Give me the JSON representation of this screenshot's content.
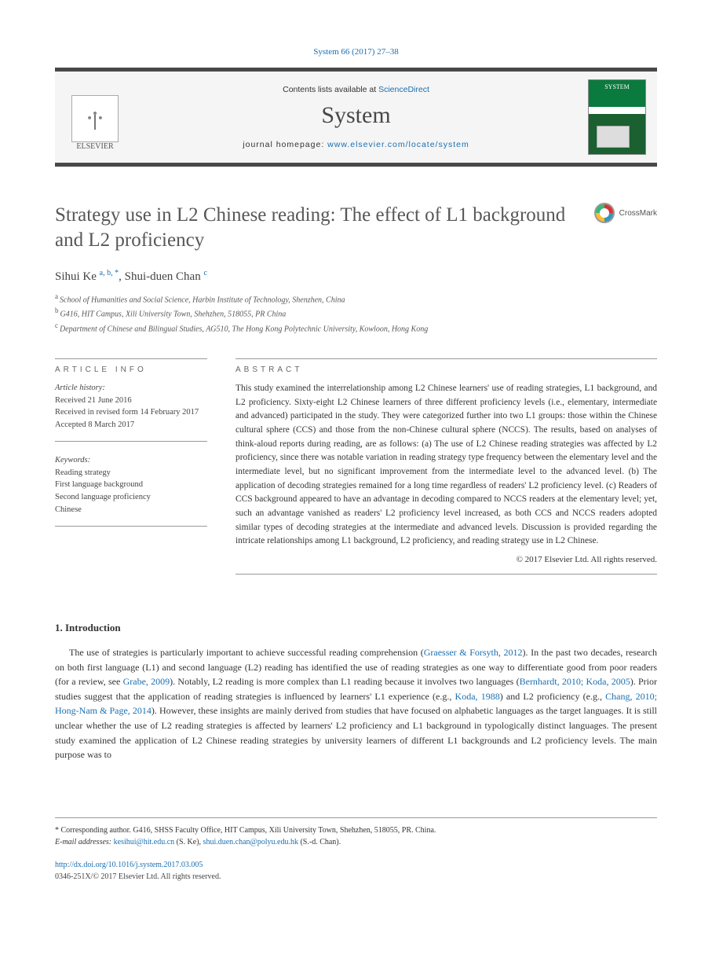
{
  "citation_header": "System 66 (2017) 27–38",
  "header": {
    "publisher_name": "ELSEVIER",
    "contents_prefix": "Contents lists available at ",
    "contents_linktext": "ScienceDirect",
    "journal_name": "System",
    "homepage_prefix": "journal homepage: ",
    "homepage_linktext": "www.elsevier.com/locate/system",
    "cover_title": "SYSTEM"
  },
  "crossmark_label": "CrossMark",
  "article": {
    "title": "Strategy use in L2 Chinese reading: The effect of L1 background and L2 proficiency",
    "authors_html_parts": {
      "a1_name": "Sihui Ke",
      "a1_aff": "a, b, *",
      "sep": ", ",
      "a2_name": "Shui-duen Chan",
      "a2_aff": "c"
    },
    "affiliations": [
      {
        "sup": "a",
        "text": "School of Humanities and Social Science, Harbin Institute of Technology, Shenzhen, China"
      },
      {
        "sup": "b",
        "text": "G416, HIT Campus, Xili University Town, Shehzhen, 518055, PR China"
      },
      {
        "sup": "c",
        "text": "Department of Chinese and Bilingual Studies, AG510, The Hong Kong Polytechnic University, Kowloon, Hong Kong"
      }
    ]
  },
  "labels": {
    "article_info": "ARTICLE INFO",
    "abstract": "ABSTRACT"
  },
  "history": {
    "heading": "Article history:",
    "received": "Received 21 June 2016",
    "revised": "Received in revised form 14 February 2017",
    "accepted": "Accepted 8 March 2017"
  },
  "keywords": {
    "heading": "Keywords:",
    "items": [
      "Reading strategy",
      "First language background",
      "Second language proficiency",
      "Chinese"
    ]
  },
  "abstract_text": "This study examined the interrelationship among L2 Chinese learners' use of reading strategies, L1 background, and L2 proficiency. Sixty-eight L2 Chinese learners of three different proficiency levels (i.e., elementary, intermediate and advanced) participated in the study. They were categorized further into two L1 groups: those within the Chinese cultural sphere (CCS) and those from the non-Chinese cultural sphere (NCCS). The results, based on analyses of think-aloud reports during reading, are as follows: (a) The use of L2 Chinese reading strategies was affected by L2 proficiency, since there was notable variation in reading strategy type frequency between the elementary level and the intermediate level, but no significant improvement from the intermediate level to the advanced level. (b) The application of decoding strategies remained for a long time regardless of readers' L2 proficiency level. (c) Readers of CCS background appeared to have an advantage in decoding compared to NCCS readers at the elementary level; yet, such an advantage vanished as readers' L2 proficiency level increased, as both CCS and NCCS readers adopted similar types of decoding strategies at the intermediate and advanced levels. Discussion is provided regarding the intricate relationships among L1 background, L2 proficiency, and reading strategy use in L2 Chinese.",
  "abstract_copyright": "© 2017 Elsevier Ltd. All rights reserved.",
  "intro": {
    "heading": "1. Introduction",
    "para_parts": {
      "t0": "The use of strategies is particularly important to achieve successful reading comprehension (",
      "c0": "Graesser & Forsyth, 2012",
      "t1": "). In the past two decades, research on both first language (L1) and second language (L2) reading has identified the use of reading strategies as one way to differentiate good from poor readers (for a review, see ",
      "c1": "Grabe, 2009",
      "t2": "). Notably, L2 reading is more complex than L1 reading because it involves two languages (",
      "c2": "Bernhardt, 2010; Koda, 2005",
      "t3": "). Prior studies suggest that the application of reading strategies is influenced by learners' L1 experience (e.g., ",
      "c3": "Koda, 1988",
      "t4": ") and L2 proficiency (e.g., ",
      "c4": "Chang, 2010; Hong-Nam & Page, 2014",
      "t5": "). However, these insights are mainly derived from studies that have focused on alphabetic languages as the target languages. It is still unclear whether the use of L2 reading strategies is affected by learners' L2 proficiency and L1 background in typologically distinct languages. The present study examined the application of L2 Chinese reading strategies by university learners of different L1 backgrounds and L2 proficiency levels. The main purpose was to"
    }
  },
  "footer": {
    "corresponding": "* Corresponding author. G416, SHSS Faculty Office, HIT Campus, Xili University Town, Shehzhen, 518055, PR. China.",
    "email_label": "E-mail addresses:",
    "email1": "kesihui@hit.edu.cn",
    "email1_post": " (S. Ke), ",
    "email2": "shui.duen.chan@polyu.edu.hk",
    "email2_post": " (S.-d. Chan).",
    "doi": "http://dx.doi.org/10.1016/j.system.2017.03.005",
    "copyright": "0346-251X/© 2017 Elsevier Ltd. All rights reserved."
  },
  "colors": {
    "link": "#1a6fb0",
    "rule": "#484848",
    "text": "#333333"
  }
}
